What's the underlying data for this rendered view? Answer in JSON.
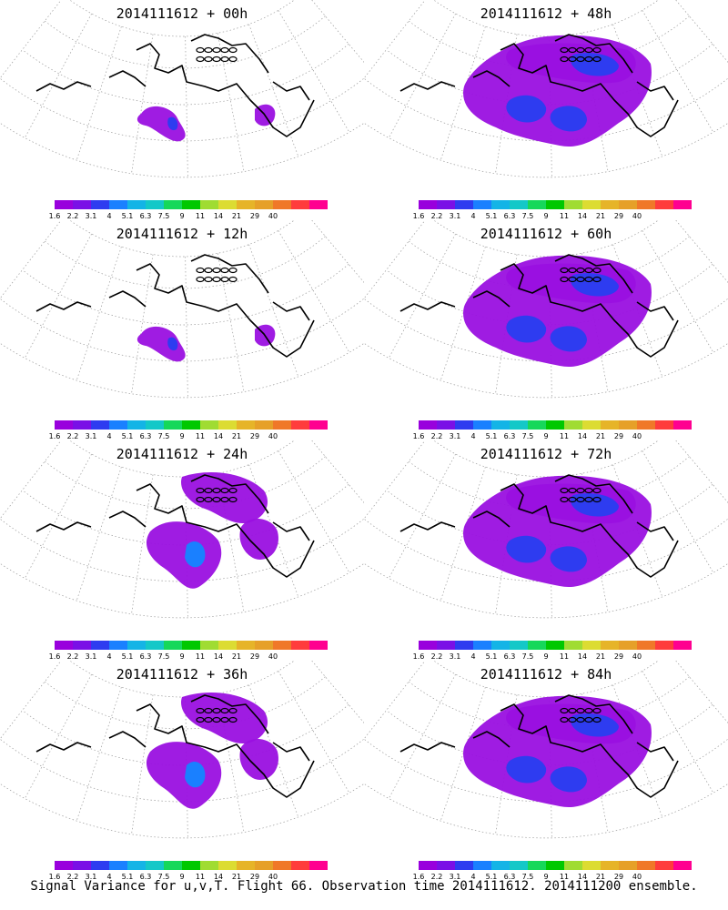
{
  "panels": [
    {
      "title": "2014111612 + 00h",
      "coverage": "low"
    },
    {
      "title": "2014111612 + 48h",
      "coverage": "high"
    },
    {
      "title": "2014111612 + 12h",
      "coverage": "low"
    },
    {
      "title": "2014111612 + 60h",
      "coverage": "high"
    },
    {
      "title": "2014111612 + 24h",
      "coverage": "medium"
    },
    {
      "title": "2014111612 + 72h",
      "coverage": "high"
    },
    {
      "title": "2014111612 + 36h",
      "coverage": "medium"
    },
    {
      "title": "2014111612 + 84h",
      "coverage": "high"
    }
  ],
  "colorbar": {
    "labels": [
      "1.6",
      "2.2",
      "3.1",
      "4",
      "5.1",
      "6.3",
      "7.5",
      "9",
      "11",
      "14",
      "21",
      "29",
      "40"
    ],
    "colors": [
      "#9900dd",
      "#7a10e6",
      "#2e3cf0",
      "#1a80ff",
      "#14b4e6",
      "#14c8c8",
      "#16d85a",
      "#00c800",
      "#a0dc32",
      "#dcdc32",
      "#e6b428",
      "#e6a028",
      "#f07828",
      "#ff3c3c",
      "#ff0090"
    ]
  },
  "caption": "Signal Variance for u,v,T. Flight 66. Observation time 2014111612. 2014111200 ensemble."
}
